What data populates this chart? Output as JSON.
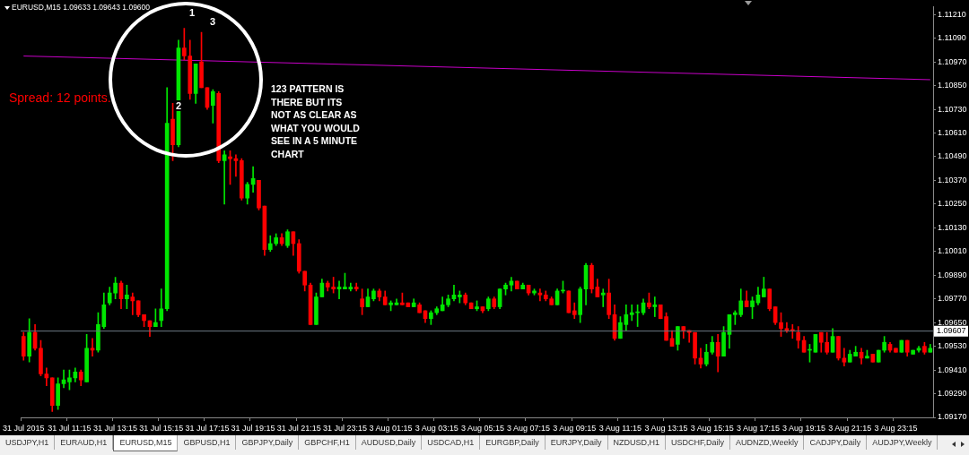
{
  "chart_data": {
    "type": "candlestick",
    "title": "EURUSD,M15 1.09633 1.09643 1.09600",
    "categories": [
      "31 Jul 2015",
      null,
      null,
      null,
      null,
      null,
      null,
      null,
      "31 Jul 11:15",
      null,
      null,
      null,
      null,
      null,
      null,
      null,
      "31 Jul 13:15",
      null,
      null,
      null,
      null,
      null,
      null,
      null,
      "31 Jul 15:15",
      null,
      null,
      null,
      null,
      null,
      null,
      null,
      "31 Jul 17:15",
      null,
      null,
      null,
      null,
      null,
      null,
      null,
      "31 Jul 19:15",
      null,
      null,
      null,
      null,
      null,
      null,
      null,
      "31 Jul 21:15",
      null,
      null,
      null,
      null,
      null,
      null,
      null,
      "31 Jul 23:15",
      null,
      null,
      null,
      null,
      null,
      null,
      null,
      "3 Aug 01:15",
      null,
      null,
      null,
      null,
      null,
      null,
      null,
      "3 Aug 03:15",
      null,
      null,
      null,
      null,
      null,
      null,
      null,
      "3 Aug 05:15",
      null,
      null,
      null,
      null,
      null,
      null,
      null,
      "3 Aug 07:15",
      null,
      null,
      null,
      null,
      null,
      null,
      null,
      "3 Aug 09:15",
      null,
      null,
      null,
      null,
      null,
      null,
      null,
      "3 Aug 11:15",
      null,
      null,
      null,
      null,
      null,
      null,
      null,
      "3 Aug 13:15",
      null,
      null,
      null,
      null,
      null,
      null,
      null,
      "3 Aug 15:15",
      null,
      null,
      null,
      null,
      null,
      null,
      null,
      "3 Aug 17:15",
      null,
      null,
      null,
      null,
      null,
      null,
      null,
      "3 Aug 19:15",
      null,
      null,
      null,
      null,
      null,
      null,
      null,
      "3 Aug 21:15",
      null,
      null,
      null,
      null,
      null,
      null,
      null,
      "3 Aug 23:15",
      null,
      null,
      null,
      null,
      null,
      null
    ],
    "ohlc": [
      [
        1.0958,
        1.096,
        1.0946,
        1.0948
      ],
      [
        1.0948,
        1.0967,
        1.0945,
        1.096
      ],
      [
        1.096,
        1.0964,
        1.0951,
        1.0952
      ],
      [
        1.0952,
        1.0956,
        1.0938,
        1.0939
      ],
      [
        1.0939,
        1.0942,
        1.0933,
        1.0937
      ],
      [
        1.0937,
        1.0937,
        1.092,
        1.0923
      ],
      [
        1.0923,
        1.0937,
        1.0921,
        1.0934
      ],
      [
        1.0934,
        1.0941,
        1.0932,
        1.0936
      ],
      [
        1.0935,
        1.0941,
        1.0931,
        1.0937
      ],
      [
        1.0937,
        1.0942,
        1.0935,
        1.094
      ],
      [
        1.094,
        1.0941,
        1.0933,
        1.0936
      ],
      [
        1.0935,
        1.0959,
        1.0935,
        1.0952
      ],
      [
        1.0952,
        1.0957,
        1.0948,
        1.0951
      ],
      [
        1.0951,
        1.097,
        1.095,
        1.0964
      ],
      [
        1.0963,
        1.098,
        1.0962,
        1.0974
      ],
      [
        1.0975,
        1.0983,
        1.0974,
        1.098
      ],
      [
        1.098,
        1.0988,
        1.0977,
        1.0985
      ],
      [
        1.0985,
        1.0986,
        1.0972,
        1.0977
      ],
      [
        1.0977,
        1.0984,
        1.0972,
        1.0979
      ],
      [
        1.0978,
        1.098,
        1.0969,
        1.0976
      ],
      [
        1.0976,
        1.0976,
        1.0968,
        1.0969
      ],
      [
        1.0969,
        1.0969,
        1.0963,
        1.0966
      ],
      [
        1.0966,
        1.0966,
        1.0958,
        1.0963
      ],
      [
        1.0963,
        1.0972,
        1.0963,
        1.0965
      ],
      [
        1.0966,
        1.0982,
        1.0963,
        1.0972
      ],
      [
        1.0972,
        1.1084,
        1.0971,
        1.1066
      ],
      [
        1.1068,
        1.1076,
        1.1047,
        1.1055
      ],
      [
        1.1055,
        1.1108,
        1.1054,
        1.1104
      ],
      [
        1.1104,
        1.1114,
        1.1098,
        1.11
      ],
      [
        1.11,
        1.1108,
        1.1078,
        1.1081
      ],
      [
        1.1081,
        1.1096,
        1.1076,
        1.1096
      ],
      [
        1.1097,
        1.1112,
        1.1084,
        1.1084
      ],
      [
        1.1084,
        1.1084,
        1.1073,
        1.1074
      ],
      [
        1.1075,
        1.1083,
        1.1066,
        1.1082
      ],
      [
        1.1081,
        1.1082,
        1.1046,
        1.1047
      ],
      [
        1.1047,
        1.1052,
        1.1025,
        1.105
      ],
      [
        1.1049,
        1.1052,
        1.1035,
        1.1048
      ],
      [
        1.1048,
        1.105,
        1.1039,
        1.1047
      ],
      [
        1.1047,
        1.1048,
        1.1027,
        1.1028
      ],
      [
        1.1028,
        1.1036,
        1.1025,
        1.1035
      ],
      [
        1.1035,
        1.1044,
        1.1031,
        1.1038
      ],
      [
        1.1037,
        1.1037,
        1.1022,
        1.1023
      ],
      [
        1.1024,
        1.1024,
        1.0999,
        1.1002
      ],
      [
        1.1002,
        1.1009,
        1.1001,
        1.1005
      ],
      [
        1.1005,
        1.101,
        1.1004,
        1.1008
      ],
      [
        1.1008,
        1.101,
        1.1004,
        1.1005
      ],
      [
        1.1004,
        1.1012,
        1.1003,
        1.1011
      ],
      [
        1.1011,
        1.1011,
        1.0999,
        1.1005
      ],
      [
        1.1005,
        1.1007,
        1.099,
        1.0991
      ],
      [
        1.0991,
        1.0991,
        1.0981,
        1.0984
      ],
      [
        1.0984,
        1.0985,
        1.0964,
        1.0964
      ],
      [
        1.0964,
        1.098,
        1.0964,
        1.0978
      ],
      [
        1.0978,
        1.0987,
        1.0978,
        1.0985
      ],
      [
        1.0985,
        1.0986,
        1.0981,
        1.0983
      ],
      [
        1.0983,
        1.0988,
        1.098,
        1.0982
      ],
      [
        1.0982,
        1.0986,
        1.0977,
        1.0983
      ],
      [
        1.0982,
        1.099,
        1.0982,
        1.0983
      ],
      [
        1.0982,
        1.0985,
        1.0981,
        1.0983
      ],
      [
        1.0983,
        1.0985,
        1.0981,
        1.0982
      ],
      [
        1.0977,
        1.0982,
        1.0969,
        1.0973
      ],
      [
        1.0973,
        1.0982,
        1.0973,
        1.0978
      ],
      [
        1.0977,
        1.0982,
        1.0976,
        1.0981
      ],
      [
        1.0981,
        1.0982,
        1.0976,
        1.0978
      ],
      [
        1.0978,
        1.0981,
        1.0974,
        1.0974
      ],
      [
        1.0974,
        1.0976,
        1.0971,
        1.0975
      ],
      [
        1.0974,
        1.0977,
        1.0974,
        1.0975
      ],
      [
        1.0975,
        1.098,
        1.0974,
        1.0974
      ],
      [
        1.0975,
        1.0975,
        1.0973,
        1.0973
      ],
      [
        1.0973,
        1.0977,
        1.0973,
        1.0975
      ],
      [
        1.0974,
        1.0975,
        1.097,
        1.097
      ],
      [
        1.0971,
        1.0971,
        1.0965,
        1.0967
      ],
      [
        1.0967,
        1.0971,
        1.0964,
        1.097
      ],
      [
        1.097,
        1.0973,
        1.0969,
        1.0972
      ],
      [
        1.0971,
        1.0978,
        1.0971,
        1.0974
      ],
      [
        1.0974,
        1.0979,
        1.0973,
        1.0977
      ],
      [
        1.0977,
        1.0984,
        1.0976,
        1.0979
      ],
      [
        1.0978,
        1.0981,
        1.0975,
        1.0979
      ],
      [
        1.0979,
        1.098,
        1.0974,
        1.0975
      ],
      [
        1.0975,
        1.0975,
        1.0972,
        1.0972
      ],
      [
        1.0972,
        1.0976,
        1.0971,
        1.0973
      ],
      [
        1.0973,
        1.0973,
        1.097,
        1.0971
      ],
      [
        1.0972,
        1.0978,
        1.0971,
        1.0977
      ],
      [
        1.0977,
        1.0978,
        1.0972,
        1.0973
      ],
      [
        1.0973,
        1.0982,
        1.0972,
        1.0982
      ],
      [
        1.0982,
        1.0985,
        1.0979,
        1.0984
      ],
      [
        1.0984,
        1.0988,
        1.0981,
        1.0986
      ],
      [
        1.0986,
        1.0986,
        1.0982,
        1.0982
      ],
      [
        1.0982,
        1.0985,
        1.0982,
        1.0984
      ],
      [
        1.0984,
        1.0984,
        1.0979,
        1.098
      ],
      [
        1.098,
        1.0982,
        1.0979,
        1.0981
      ],
      [
        1.098,
        1.0982,
        1.0976,
        1.0979
      ],
      [
        1.0979,
        1.0981,
        1.0976,
        1.0977
      ],
      [
        1.0977,
        1.0978,
        1.0974,
        1.0974
      ],
      [
        1.0974,
        1.0982,
        1.0974,
        1.0981
      ],
      [
        1.0981,
        1.0986,
        1.098,
        1.0981
      ],
      [
        1.0981,
        1.0981,
        1.097,
        1.097
      ],
      [
        1.0971,
        1.0975,
        1.0967,
        1.0969
      ],
      [
        1.0969,
        1.0983,
        1.0965,
        1.0982
      ],
      [
        1.0982,
        1.0995,
        1.0974,
        1.0994
      ],
      [
        1.0994,
        1.0995,
        1.098,
        1.0982
      ],
      [
        1.0983,
        1.0987,
        1.0978,
        1.0978
      ],
      [
        1.0979,
        1.0982,
        1.0973,
        1.098
      ],
      [
        1.098,
        1.0987,
        1.0967,
        1.0969
      ],
      [
        1.0969,
        1.0974,
        1.0956,
        1.0957
      ],
      [
        1.0957,
        1.0968,
        1.0957,
        1.0965
      ],
      [
        1.0964,
        1.0974,
        1.0961,
        1.0969
      ],
      [
        1.0969,
        1.0974,
        1.0966,
        1.097
      ],
      [
        1.097,
        1.0974,
        1.0963,
        1.097
      ],
      [
        1.097,
        1.0977,
        1.0969,
        1.0975
      ],
      [
        1.0975,
        1.098,
        1.0972,
        1.0973
      ],
      [
        1.0973,
        1.0978,
        1.0968,
        1.0974
      ],
      [
        1.0974,
        1.0974,
        1.0967,
        1.0967
      ],
      [
        1.0968,
        1.097,
        1.0956,
        1.0956
      ],
      [
        1.0957,
        1.0961,
        1.0953,
        1.0953
      ],
      [
        1.0954,
        1.0963,
        1.0951,
        1.0963
      ],
      [
        1.0963,
        1.0963,
        1.0957,
        1.0961
      ],
      [
        1.0961,
        1.0961,
        1.0955,
        1.096
      ],
      [
        1.096,
        1.096,
        1.0944,
        1.0947
      ],
      [
        1.0947,
        1.0952,
        1.0942,
        1.0944
      ],
      [
        1.0944,
        1.0954,
        1.0943,
        1.095
      ],
      [
        1.095,
        1.0958,
        1.0949,
        1.0955
      ],
      [
        1.0955,
        1.0959,
        1.094,
        1.0948
      ],
      [
        1.0948,
        1.0963,
        1.0948,
        1.096
      ],
      [
        1.0959,
        1.0969,
        1.0952,
        1.0969
      ],
      [
        1.0969,
        1.0971,
        1.0964,
        1.097
      ],
      [
        1.0969,
        1.0982,
        1.0968,
        1.0976
      ],
      [
        1.0976,
        1.0981,
        1.0973,
        1.0973
      ],
      [
        1.0973,
        1.0978,
        1.0967,
        1.0976
      ],
      [
        1.0975,
        1.0983,
        1.0974,
        1.0979
      ],
      [
        1.0978,
        1.0988,
        1.0978,
        1.0982
      ],
      [
        1.0982,
        1.0982,
        1.0971,
        1.0972
      ],
      [
        1.0973,
        1.0973,
        1.0964,
        1.0965
      ],
      [
        1.0965,
        1.097,
        1.0958,
        1.0962
      ],
      [
        1.0962,
        1.0965,
        1.096,
        1.0961
      ],
      [
        1.0961,
        1.0964,
        1.0957,
        1.0961
      ],
      [
        1.096,
        1.0963,
        1.0952,
        1.0956
      ],
      [
        1.0956,
        1.0958,
        1.095,
        1.095
      ],
      [
        1.0951,
        1.0954,
        1.0945,
        1.0951
      ],
      [
        1.095,
        1.0959,
        1.095,
        1.0959
      ],
      [
        1.096,
        1.096,
        1.095,
        1.0955
      ],
      [
        1.0955,
        1.096,
        1.0949,
        1.095
      ],
      [
        1.095,
        1.0962,
        1.095,
        1.0958
      ],
      [
        1.0958,
        1.0958,
        1.0946,
        1.0947
      ],
      [
        1.0947,
        1.0952,
        1.0943,
        1.0945
      ],
      [
        1.0945,
        1.0951,
        1.0945,
        1.0949
      ],
      [
        1.0948,
        1.0953,
        1.0948,
        1.095
      ],
      [
        1.095,
        1.0952,
        1.0944,
        1.0947
      ],
      [
        1.0947,
        1.0951,
        1.0947,
        1.0948
      ],
      [
        1.0949,
        1.0949,
        1.0945,
        1.0945
      ],
      [
        1.0945,
        1.0951,
        1.0945,
        1.0951
      ],
      [
        1.0951,
        1.0958,
        1.095,
        1.0955
      ],
      [
        1.0954,
        1.0955,
        1.095,
        1.0951
      ],
      [
        1.0952,
        1.0952,
        1.095,
        1.095
      ],
      [
        1.095,
        1.0956,
        1.095,
        1.0956
      ],
      [
        1.0956,
        1.0956,
        1.0948,
        1.095
      ],
      [
        1.0949,
        1.0951,
        1.0949,
        1.0951
      ],
      [
        1.0951,
        1.0953,
        1.095,
        1.0952
      ],
      [
        1.0953,
        1.0955,
        1.0949,
        1.095
      ],
      [
        1.095,
        1.0954,
        1.095,
        1.0952
      ]
    ],
    "colors": [
      "#ff0000",
      "#00e600",
      "#ff0000",
      "#ff0000",
      "#ff0000",
      "#ff0000",
      "#00e600",
      "#00e600",
      "#00e600",
      "#00e600",
      "#ff0000",
      "#00e600",
      "#ff0000",
      "#00e600",
      "#00e600",
      "#00e600",
      "#00e600",
      "#ff0000",
      "#00e600",
      "#ff0000",
      "#ff0000",
      "#ff0000",
      "#ff0000",
      "#00e600",
      "#00e600",
      "#00e600",
      "#ff0000",
      "#00e600",
      "#ff0000",
      "#ff0000",
      "#00e600",
      "#ff0000",
      "#ff0000",
      "#00e600",
      "#ff0000",
      "#00e600",
      "#ff0000",
      "#ff0000",
      "#ff0000",
      "#00e600",
      "#00e600",
      "#ff0000",
      "#ff0000",
      "#00e600",
      "#00e600",
      "#ff0000",
      "#00e600",
      "#ff0000",
      "#ff0000",
      "#ff0000",
      "#ff0000",
      "#00e600",
      "#00e600",
      "#ff0000",
      "#ff0000",
      "#00e600",
      "#00e600",
      "#00e600",
      "#ff0000",
      "#ff0000",
      "#00e600",
      "#00e600",
      "#ff0000",
      "#ff0000",
      "#00e600",
      "#00e600",
      "#ff0000",
      "#ff0000",
      "#00e600",
      "#ff0000",
      "#ff0000",
      "#00e600",
      "#00e600",
      "#00e600",
      "#00e600",
      "#00e600",
      "#00e600",
      "#ff0000",
      "#ff0000",
      "#00e600",
      "#ff0000",
      "#00e600",
      "#ff0000",
      "#00e600",
      "#00e600",
      "#00e600",
      "#ff0000",
      "#00e600",
      "#ff0000",
      "#00e600",
      "#ff0000",
      "#ff0000",
      "#ff0000",
      "#00e600",
      "#00e600",
      "#ff0000",
      "#ff0000",
      "#00e600",
      "#00e600",
      "#ff0000",
      "#ff0000",
      "#00e600",
      "#ff0000",
      "#ff0000",
      "#00e600",
      "#00e600",
      "#00e600",
      "#00e600",
      "#00e600",
      "#ff0000",
      "#00e600",
      "#ff0000",
      "#ff0000",
      "#ff0000",
      "#00e600",
      "#ff0000",
      "#ff0000",
      "#ff0000",
      "#ff0000",
      "#00e600",
      "#00e600",
      "#ff0000",
      "#00e600",
      "#00e600",
      "#00e600",
      "#00e600",
      "#ff0000",
      "#00e600",
      "#00e600",
      "#00e600",
      "#ff0000",
      "#ff0000",
      "#ff0000",
      "#ff0000",
      "#ff0000",
      "#ff0000",
      "#ff0000",
      "#00e600",
      "#00e600",
      "#ff0000",
      "#ff0000",
      "#00e600",
      "#ff0000",
      "#ff0000",
      "#00e600",
      "#00e600",
      "#ff0000",
      "#00e600",
      "#ff0000",
      "#00e600",
      "#00e600",
      "#ff0000",
      "#ff0000",
      "#00e600",
      "#ff0000",
      "#00e600",
      "#00e600",
      "#ff0000",
      "#00e600"
    ],
    "series": [
      {
        "type": "line",
        "color": "#c800c8",
        "values": [
          1.11,
          null,
          null,
          null,
          null,
          null,
          null,
          null,
          null,
          null,
          null,
          null,
          null,
          null,
          null,
          null,
          null,
          null,
          null,
          null,
          null,
          null,
          null,
          null,
          null,
          null,
          null,
          null,
          null,
          null,
          null,
          null,
          null,
          null,
          null,
          null,
          null,
          null,
          null,
          null,
          null,
          null,
          null,
          null,
          null,
          null,
          null,
          null,
          null,
          null,
          null,
          null,
          null,
          null,
          null,
          null,
          null,
          null,
          null,
          null,
          null,
          null,
          null,
          null,
          null,
          null,
          null,
          null,
          null,
          null,
          null,
          null,
          null,
          null,
          null,
          null,
          null,
          null,
          null,
          null,
          null,
          null,
          null,
          null,
          null,
          null,
          null,
          null,
          null,
          null,
          null,
          null,
          null,
          null,
          null,
          null,
          null,
          null,
          null,
          null,
          null,
          null,
          null,
          null,
          null,
          null,
          null,
          null,
          null,
          null,
          null,
          null,
          null,
          null,
          null,
          null,
          null,
          null,
          null,
          null,
          null,
          null,
          null,
          null,
          null,
          null,
          null,
          null,
          null,
          null,
          null,
          null,
          null,
          null,
          null,
          null,
          null,
          null,
          null,
          null,
          null,
          null,
          null,
          null,
          null,
          null,
          null,
          null,
          null,
          null,
          null,
          null,
          null,
          null,
          null,
          null,
          null,
          null,
          1.1088
        ]
      }
    ],
    "ylim": [
      1.0917,
      1.1125
    ],
    "yticks": [
      {
        "value": 1.0917,
        "label": "1.09170"
      },
      {
        "value": 1.0929,
        "label": "1.09290"
      },
      {
        "value": 1.0941,
        "label": "1.09410"
      },
      {
        "value": 1.0953,
        "label": "1.09530"
      },
      {
        "value": 1.0965,
        "label": "1.09650"
      },
      {
        "value": 1.0977,
        "label": "1.09770"
      },
      {
        "value": 1.0989,
        "label": "1.09890"
      },
      {
        "value": 1.1001,
        "label": "1.10010"
      },
      {
        "value": 1.1013,
        "label": "1.10130"
      },
      {
        "value": 1.1025,
        "label": "1.10250"
      },
      {
        "value": 1.1037,
        "label": "1.10370"
      },
      {
        "value": 1.1049,
        "label": "1.10490"
      },
      {
        "value": 1.1061,
        "label": "1.10610"
      },
      {
        "value": 1.1073,
        "label": "1.10730"
      },
      {
        "value": 1.1085,
        "label": "1.10850"
      },
      {
        "value": 1.1097,
        "label": "1.10970"
      },
      {
        "value": 1.1109,
        "label": "1.11090"
      },
      {
        "value": 1.1121,
        "label": "1.11210"
      }
    ],
    "ref_lines": [
      {
        "axis": "y",
        "value": 1.09607,
        "label": "1.09607",
        "color": "#6c7884"
      }
    ],
    "annotations": [
      "Spread: 12 points.",
      "123 PATTERN IS\nTHERE BUT ITS\nNOT AS CLEAR AS\nWHAT YOU WOULD\nSEE IN A 5 MINUTE\nCHART",
      "1",
      "2",
      "3",
      "USDJPY,H1",
      "EURAUD,H1",
      "EURUSD,M15",
      "GBPUSD,H1",
      "GBPJPY,Daily",
      "GBPCHF,H1",
      "AUDUSD,Daily",
      "USDCAD,H1",
      "EURGBP,Daily",
      "EURJPY,Daily",
      "NZDUSD,H1",
      "USDCHF,Daily",
      "AUDNZD,Weekly",
      "CADJPY,Daily",
      "AUDJPY,Weekly"
    ]
  }
}
